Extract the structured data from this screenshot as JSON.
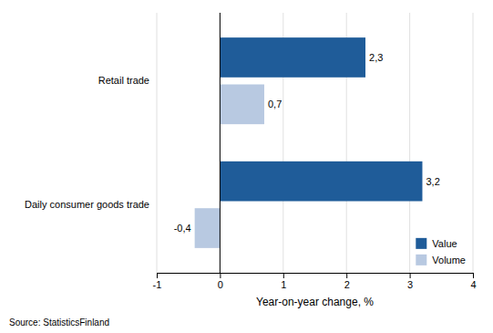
{
  "chart_data": {
    "type": "bar",
    "orientation": "horizontal",
    "categories": [
      "Daily consumer goods trade",
      "Retail trade"
    ],
    "series": [
      {
        "name": "Value",
        "color": "#1F5C99",
        "values": [
          3.2,
          2.3
        ],
        "value_labels": [
          "3,2",
          "2,3"
        ]
      },
      {
        "name": "Volume",
        "color": "#B8C9E1",
        "values": [
          -0.4,
          0.7
        ],
        "value_labels": [
          "-0,4",
          "0,7"
        ]
      }
    ],
    "xlabel": "Year-on-year change, %",
    "xlim": [
      -1,
      4
    ],
    "xticks": [
      -1,
      0,
      1,
      2,
      3,
      4
    ],
    "grid": true,
    "legend": "lower right",
    "data_labels": true,
    "annotations": [
      "Source: StatisticsFinland"
    ]
  }
}
